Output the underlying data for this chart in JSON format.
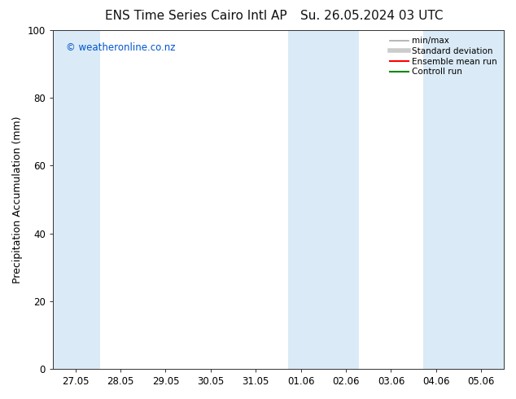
{
  "title_left": "ENS Time Series Cairo Intl AP",
  "title_right": "Su. 26.05.2024 03 UTC",
  "ylabel": "Precipitation Accumulation (mm)",
  "watermark": "© weatheronline.co.nz",
  "watermark_color": "#0055cc",
  "ylim": [
    0,
    100
  ],
  "yticks": [
    0,
    20,
    40,
    60,
    80,
    100
  ],
  "xtick_labels": [
    "27.05",
    "28.05",
    "29.05",
    "30.05",
    "31.05",
    "01.06",
    "02.06",
    "03.06",
    "04.06",
    "05.06"
  ],
  "background_color": "#ffffff",
  "plot_bg_color": "#ffffff",
  "shaded_color": "#daeaf7",
  "legend_labels": [
    "min/max",
    "Standard deviation",
    "Ensemble mean run",
    "Controll run"
  ],
  "legend_colors": [
    "#aaaaaa",
    "#cccccc",
    "#ff0000",
    "#008800"
  ],
  "title_fontsize": 11,
  "axis_fontsize": 9,
  "tick_fontsize": 8.5
}
